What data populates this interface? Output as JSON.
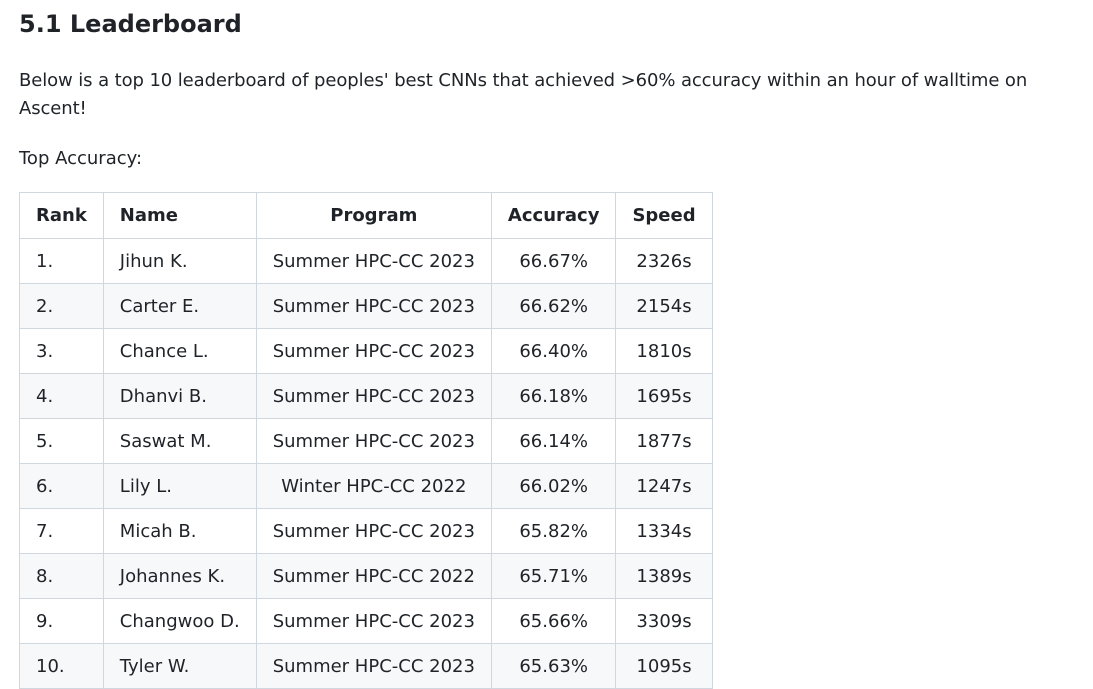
{
  "section": {
    "title": "5.1 Leaderboard",
    "intro": "Below is a top 10 leaderboard of peoples' best CNNs that achieved >60% accuracy within an hour of walltime on Ascent!",
    "subheading": "Top Accuracy:"
  },
  "table": {
    "headers": [
      "Rank",
      "Name",
      "Program",
      "Accuracy",
      "Speed"
    ],
    "rows": [
      [
        "1.",
        "Jihun K.",
        "Summer HPC-CC 2023",
        "66.67%",
        "2326s"
      ],
      [
        "2.",
        "Carter E.",
        "Summer HPC-CC 2023",
        "66.62%",
        "2154s"
      ],
      [
        "3.",
        "Chance L.",
        "Summer HPC-CC 2023",
        "66.40%",
        "1810s"
      ],
      [
        "4.",
        "Dhanvi B.",
        "Summer HPC-CC 2023",
        "66.18%",
        "1695s"
      ],
      [
        "5.",
        "Saswat M.",
        "Summer HPC-CC 2023",
        "66.14%",
        "1877s"
      ],
      [
        "6.",
        "Lily L.",
        "Winter HPC-CC 2022",
        "66.02%",
        "1247s"
      ],
      [
        "7.",
        "Micah B.",
        "Summer HPC-CC 2023",
        "65.82%",
        "1334s"
      ],
      [
        "8.",
        "Johannes K.",
        "Summer HPC-CC 2022",
        "65.71%",
        "1389s"
      ],
      [
        "9.",
        "Changwoo D.",
        "Summer HPC-CC 2023",
        "65.66%",
        "3309s"
      ],
      [
        "10.",
        "Tyler W.",
        "Summer HPC-CC 2023",
        "65.63%",
        "1095s"
      ]
    ]
  }
}
